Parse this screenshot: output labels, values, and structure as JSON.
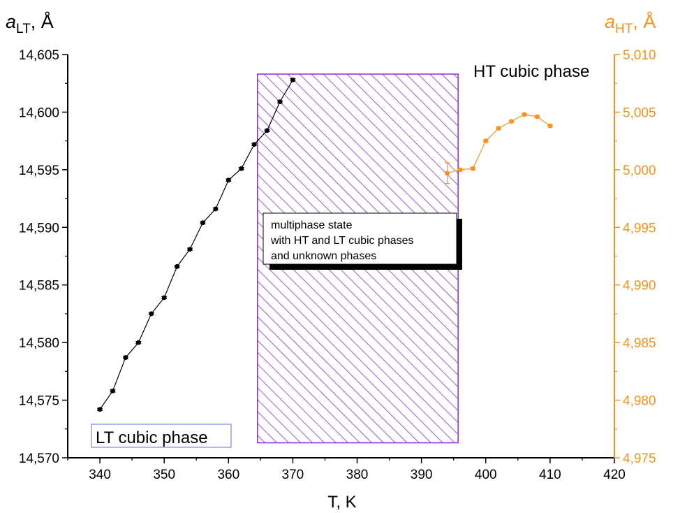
{
  "chart_data": {
    "type": "scatter",
    "xlabel": "T, K",
    "ylabel_left": {
      "symbol": "a",
      "subscript": "LT",
      "unit": ", Å"
    },
    "ylabel_right": {
      "symbol": "a",
      "subscript": "HT",
      "unit": ", Å"
    },
    "xlim": [
      335,
      420
    ],
    "ylim_left": [
      14.57,
      14.605
    ],
    "ylim_right": [
      4.975,
      5.01
    ],
    "x_ticks": [
      340,
      350,
      360,
      370,
      380,
      390,
      400,
      410,
      420
    ],
    "x_tick_labels": [
      "340",
      "350",
      "360",
      "370",
      "380",
      "390",
      "400",
      "410",
      "420"
    ],
    "y_left_ticks": [
      14.57,
      14.575,
      14.58,
      14.585,
      14.59,
      14.595,
      14.6,
      14.605
    ],
    "y_left_tick_labels": [
      "14,570",
      "14,575",
      "14,580",
      "14,585",
      "14,590",
      "14,595",
      "14,600",
      "14,605"
    ],
    "y_right_ticks": [
      4.975,
      4.98,
      4.985,
      4.99,
      4.995,
      5.0,
      5.005,
      5.01
    ],
    "y_right_tick_labels": [
      "4,975",
      "4,980",
      "4,985",
      "4,990",
      "4,995",
      "5,000",
      "5,005",
      "5,010"
    ],
    "grid": false,
    "series": [
      {
        "axis": "left",
        "color": "#000000",
        "x": [
          340,
          342,
          344,
          346,
          348,
          350,
          352,
          354,
          356,
          358,
          360,
          362,
          364,
          366,
          368,
          370
        ],
        "y": [
          14.5742,
          14.5758,
          14.5787,
          14.58,
          14.5825,
          14.5839,
          14.5866,
          14.5881,
          14.5904,
          14.5916,
          14.5941,
          14.5951,
          14.5972,
          14.5984,
          14.6009,
          14.6028
        ],
        "y_err": [
          0.0001,
          0.0001,
          0.0001,
          0.0001,
          0.0001,
          0.0001,
          0.0001,
          0.0001,
          0.0001,
          0.0001,
          0.0001,
          0.0001,
          0.0001,
          0.0001,
          0.0001,
          0.0001
        ]
      },
      {
        "axis": "right",
        "color": "#f7931e",
        "x": [
          394,
          396,
          398,
          400,
          402,
          404,
          406,
          408,
          410
        ],
        "y": [
          4.9997,
          5.0,
          5.0001,
          5.0025,
          5.0036,
          5.0042,
          5.0048,
          5.0046,
          5.0038
        ],
        "y_err": [
          0.0009,
          0.0001,
          0.0001,
          0.0001,
          0.0001,
          0.0001,
          0.0001,
          0.0001,
          0.0001
        ]
      }
    ],
    "region": {
      "x_range": [
        364.5,
        395.7
      ],
      "y_range_left": [
        14.5713,
        14.6033
      ],
      "color": "#8a2be2",
      "fill": "diagonal-hatch"
    },
    "annotations": {
      "ht_label": "HT cubic phase",
      "lt_label": "LT cubic phase",
      "multiphase_lines": [
        "multiphase state",
        "with HT and LT cubic phases",
        "and unknown phases"
      ]
    },
    "colors": {
      "left_axis": "#000000",
      "right_axis": "#f7931e",
      "region": "#8a2be2"
    }
  }
}
